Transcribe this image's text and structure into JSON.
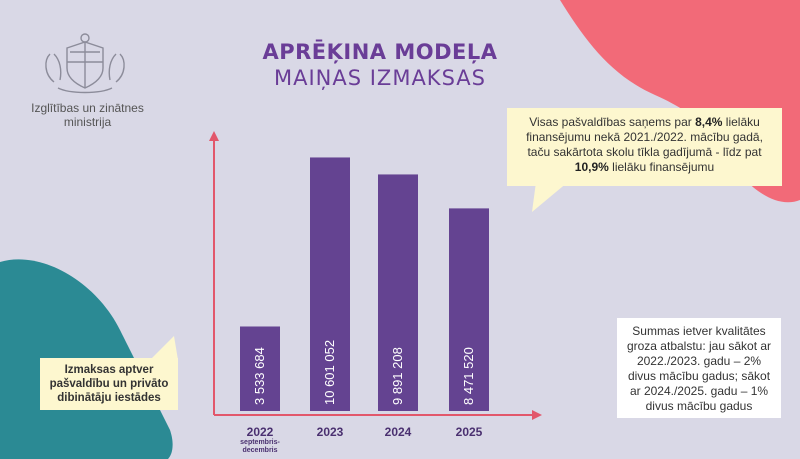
{
  "header": {
    "title_line1": "APRĒĶINA MODEĻA",
    "title_line2": "MAIŅAS IZMAKSAS"
  },
  "organization": {
    "name_line1": "Izglītības un zinātnes",
    "name_line2": "ministrija",
    "logo_icon": "coat-of-arms-icon"
  },
  "callouts": {
    "top_right": {
      "part1": "Visas pašvaldības saņems par ",
      "highlight1": "8,4%",
      "part2": " lielāku finansējumu nekā 2021./2022. mācību gadā, taču sakārtota skolu tīkla gadījumā - līdz pat ",
      "highlight2": "10,9%",
      "part3": " lielāku finansējumu"
    },
    "bottom_left": "Izmaksas aptver pašvaldību un privāto dibinātāju iestādes",
    "bottom_right": "Summas ietver kvalitātes groza atbalstu: jau sākot ar 2022./2023. gadu – 2% divus mācību gadus; sākot ar 2024./2025. gadu – 1% divus mācību gadus"
  },
  "chart_data": {
    "type": "bar",
    "categories": [
      "2022",
      "2023",
      "2024",
      "2025"
    ],
    "category_sublabels": [
      "septembris-decembris",
      "",
      "",
      ""
    ],
    "values": [
      3533684,
      10601052,
      9891208,
      8471520
    ],
    "value_labels": [
      "3 533 684",
      "10 601 052",
      "9 891 208",
      "8 471 520"
    ],
    "ylim": [
      0,
      12000000
    ],
    "grid": false,
    "bar_color": "#644391",
    "axis_color": "#e2576b"
  },
  "colors": {
    "background": "#d9d8e6",
    "title": "#6a3d97",
    "accent_pink": "#f26a78",
    "accent_teal": "#2b8a94",
    "callout_bg": "#fdf7cf"
  }
}
